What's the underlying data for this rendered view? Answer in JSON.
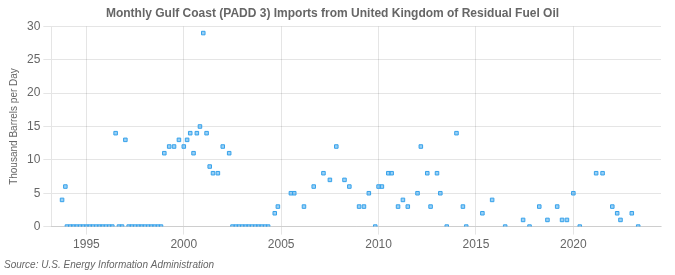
{
  "chart_data": {
    "type": "scatter",
    "title": "Monthly Gulf Coast (PADD 3) Imports from United Kingdom of Residual Fuel Oil",
    "ylabel": "Thousand Barrels per Day",
    "annotation": "Source: U.S. Energy Information Administration",
    "marker": "square",
    "x": [
      1993.75,
      1993.92,
      1996.5,
      1997.0,
      1999.0,
      1999.25,
      1999.5,
      1999.75,
      2000.0,
      2000.17,
      2000.33,
      2000.5,
      2000.67,
      2000.83,
      2001.0,
      2001.17,
      2001.33,
      2001.5,
      2001.75,
      2002.0,
      2002.33,
      1994.0,
      1994.17,
      1994.33,
      1994.5,
      1994.67,
      1994.83,
      1995.0,
      1995.17,
      1995.33,
      1995.5,
      1995.67,
      1995.83,
      1996.0,
      1996.17,
      1996.33,
      1996.67,
      1996.83,
      1997.17,
      1997.33,
      1997.5,
      1997.67,
      1997.83,
      1998.0,
      1998.17,
      1998.33,
      1998.5,
      1998.67,
      1998.83,
      2002.5,
      2002.67,
      2002.83,
      2003.0,
      2003.17,
      2003.33,
      2003.5,
      2003.67,
      2003.83,
      2004.0,
      2004.17,
      2004.33,
      2004.67,
      2004.83,
      2005.5,
      2005.67,
      2006.17,
      2006.67,
      2007.17,
      2007.5,
      2007.83,
      2008.25,
      2008.5,
      2009.0,
      2009.25,
      2009.5,
      2009.83,
      2010.0,
      2010.17,
      2010.5,
      2010.67,
      2011.0,
      2011.25,
      2011.5,
      2012.0,
      2012.17,
      2012.5,
      2012.67,
      2013.0,
      2013.17,
      2013.5,
      2014.0,
      2014.33,
      2014.5,
      2015.33,
      2015.83,
      2016.5,
      2017.42,
      2017.75,
      2018.25,
      2018.67,
      2019.17,
      2019.42,
      2019.67,
      2020.0,
      2020.33,
      2021.17,
      2021.5,
      2022.0,
      2022.25,
      2022.42,
      2023.0,
      2023.33
    ],
    "values": [
      4,
      6,
      14,
      13,
      11,
      12,
      12,
      13,
      12,
      13,
      14,
      11,
      14,
      15,
      29,
      14,
      9,
      8,
      8,
      12,
      11,
      0,
      0,
      0,
      0,
      0,
      0,
      0,
      0,
      0,
      0,
      0,
      0,
      0,
      0,
      0,
      0,
      0,
      0,
      0,
      0,
      0,
      0,
      0,
      0,
      0,
      0,
      0,
      0,
      0,
      0,
      0,
      0,
      0,
      0,
      0,
      0,
      0,
      0,
      0,
      0,
      2,
      3,
      5,
      5,
      3,
      6,
      8,
      7,
      12,
      7,
      6,
      3,
      3,
      5,
      0,
      6,
      6,
      8,
      8,
      3,
      4,
      3,
      5,
      12,
      8,
      3,
      8,
      5,
      0,
      14,
      3,
      0,
      2,
      4,
      0,
      1,
      0,
      3,
      1,
      3,
      1,
      1,
      5,
      0,
      8,
      8,
      3,
      2,
      1,
      2,
      0
    ],
    "xlim": [
      1993.2,
      2024.5
    ],
    "xticks": [
      1995,
      2000,
      2005,
      2010,
      2015,
      2020
    ],
    "ylim": [
      0,
      30
    ],
    "yticks": [
      0,
      5,
      10,
      15,
      20,
      25,
      30
    ],
    "grid": true
  }
}
